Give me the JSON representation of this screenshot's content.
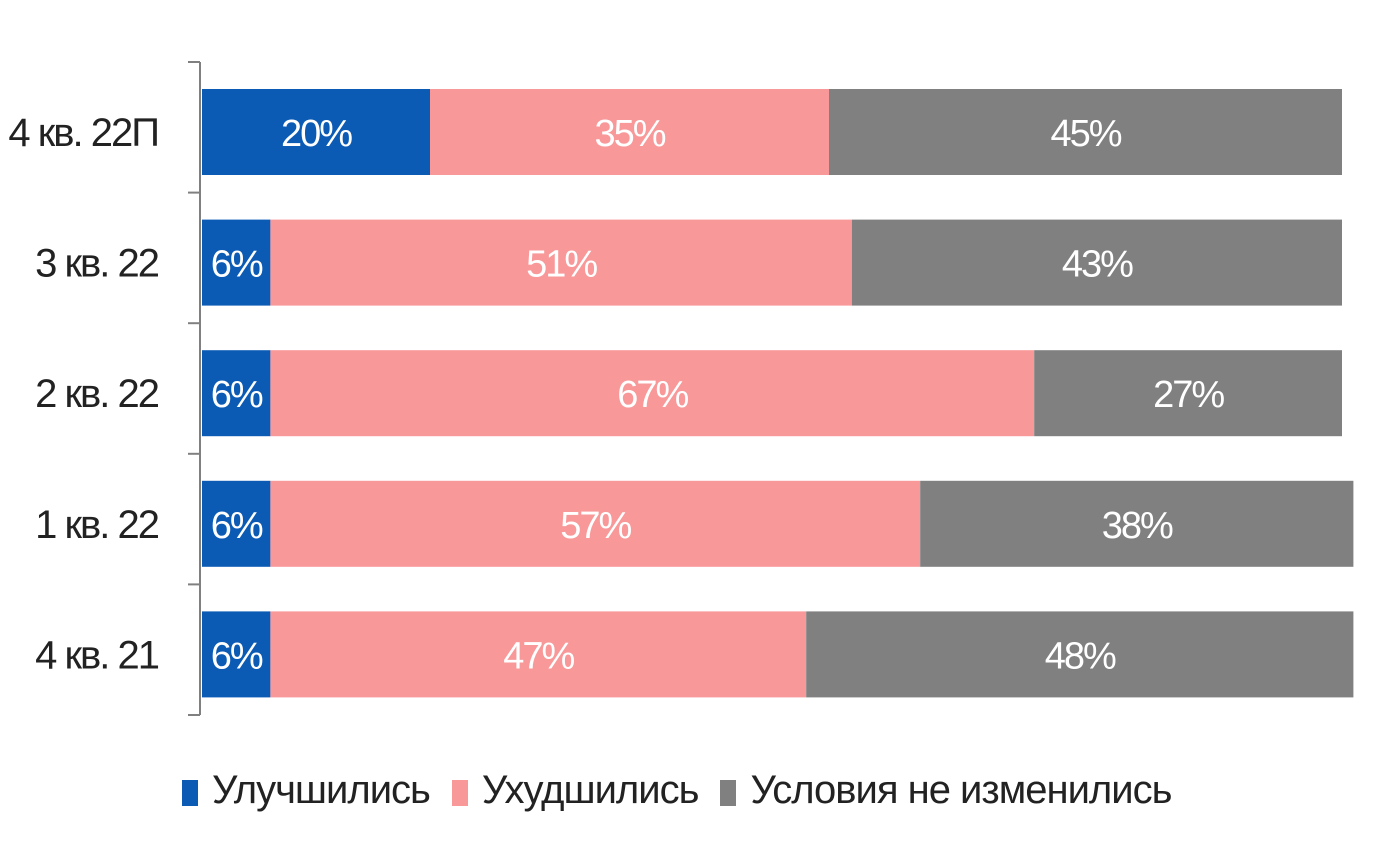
{
  "chart_data": {
    "type": "bar",
    "orientation": "horizontal",
    "stacked": "percent",
    "categories": [
      "4 кв. 22П",
      "3 кв. 22",
      "2 кв. 22",
      "1 кв. 22",
      "4 кв. 21"
    ],
    "series": [
      {
        "name": "Улучшились",
        "color": "#0b5bb5",
        "values": [
          20,
          6,
          6,
          6,
          6
        ],
        "labels": [
          "20%",
          "6%",
          "6%",
          "6%",
          "6%"
        ]
      },
      {
        "name": "Ухудшились",
        "color": "#f89899",
        "values": [
          35,
          51,
          67,
          57,
          47
        ],
        "labels": [
          "35%",
          "51%",
          "67%",
          "57%",
          "47%"
        ]
      },
      {
        "name": "Условия не изменились",
        "color": "#808080",
        "values": [
          45,
          43,
          27,
          38,
          48
        ],
        "labels": [
          "45%",
          "43%",
          "27%",
          "38%",
          "48%"
        ]
      }
    ],
    "xlim": [
      0,
      100
    ],
    "grid": false,
    "legend_position": "bottom"
  }
}
